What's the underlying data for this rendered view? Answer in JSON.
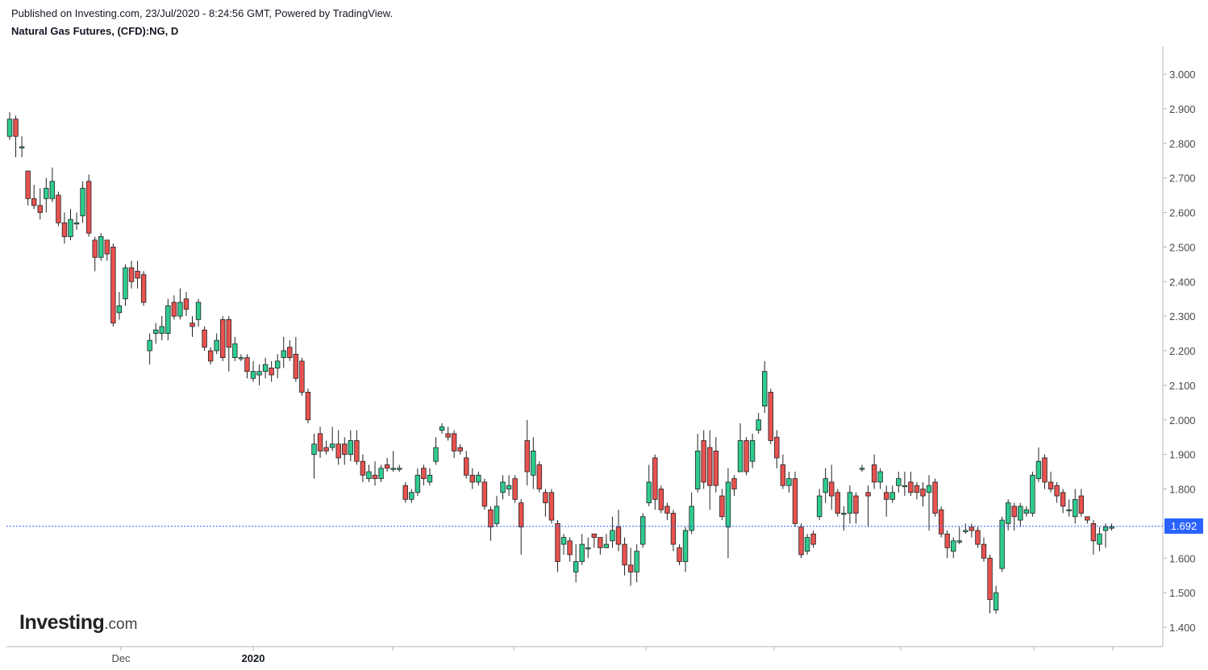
{
  "header": {
    "published": "Published on Investing.com, 23/Jul/2020 - 8:24:56 GMT, Powered by TradingView.",
    "instrument": "Natural Gas Futures, (CFD):NG, D"
  },
  "logo": {
    "main": "Investing",
    "suffix": ".com"
  },
  "colors": {
    "up": "#26a69a",
    "up_fill": "#2ecc8f",
    "down": "#ef5350",
    "down_fill": "#e8524f",
    "wick": "#222222",
    "last_price_line": "#2962ff"
  },
  "chart_data": {
    "type": "candlestick",
    "title": "Natural Gas Futures, (CFD):NG, D",
    "x_axis": {
      "ticks": [
        "Dec",
        "2020",
        "",
        "",
        "",
        "",
        "",
        "",
        ""
      ]
    },
    "y_axis": {
      "side": "right",
      "range": [
        1.36,
        3.07
      ],
      "ticks": [
        "3.000",
        "2.900",
        "2.800",
        "2.700",
        "2.600",
        "2.500",
        "2.400",
        "2.300",
        "2.200",
        "2.100",
        "2.000",
        "1.900",
        "1.800",
        "1.700",
        "1.600",
        "1.500",
        "1.400"
      ]
    },
    "last_price": 1.692,
    "last_price_label": "1.692",
    "candles": [
      [
        2.82,
        2.87,
        2.89,
        2.81
      ],
      [
        2.87,
        2.82,
        2.88,
        2.76
      ],
      [
        2.79,
        2.79,
        2.82,
        2.76
      ],
      [
        2.72,
        2.64,
        2.72,
        2.62
      ],
      [
        2.64,
        2.62,
        2.68,
        2.61
      ],
      [
        2.62,
        2.6,
        2.67,
        2.58
      ],
      [
        2.64,
        2.67,
        2.7,
        2.6
      ],
      [
        2.64,
        2.69,
        2.73,
        2.63
      ],
      [
        2.65,
        2.57,
        2.66,
        2.56
      ],
      [
        2.57,
        2.53,
        2.6,
        2.51
      ],
      [
        2.53,
        2.58,
        2.61,
        2.52
      ],
      [
        2.57,
        2.57,
        2.6,
        2.55
      ],
      [
        2.59,
        2.67,
        2.69,
        2.57
      ],
      [
        2.69,
        2.54,
        2.71,
        2.53
      ],
      [
        2.52,
        2.47,
        2.53,
        2.43
      ],
      [
        2.47,
        2.53,
        2.54,
        2.46
      ],
      [
        2.52,
        2.48,
        2.52,
        2.46
      ],
      [
        2.5,
        2.28,
        2.51,
        2.27
      ],
      [
        2.31,
        2.33,
        2.37,
        2.29
      ],
      [
        2.35,
        2.44,
        2.45,
        2.33
      ],
      [
        2.44,
        2.4,
        2.46,
        2.38
      ],
      [
        2.43,
        2.41,
        2.46,
        2.38
      ],
      [
        2.42,
        2.34,
        2.43,
        2.33
      ],
      [
        2.2,
        2.23,
        2.25,
        2.16
      ],
      [
        2.25,
        2.26,
        2.28,
        2.22
      ],
      [
        2.25,
        2.27,
        2.3,
        2.23
      ],
      [
        2.25,
        2.33,
        2.35,
        2.23
      ],
      [
        2.34,
        2.3,
        2.36,
        2.29
      ],
      [
        2.3,
        2.34,
        2.38,
        2.29
      ],
      [
        2.35,
        2.32,
        2.37,
        2.3
      ],
      [
        2.28,
        2.27,
        2.3,
        2.24
      ],
      [
        2.29,
        2.34,
        2.35,
        2.27
      ],
      [
        2.26,
        2.21,
        2.27,
        2.2
      ],
      [
        2.2,
        2.17,
        2.21,
        2.16
      ],
      [
        2.2,
        2.23,
        2.25,
        2.19
      ],
      [
        2.29,
        2.18,
        2.3,
        2.17
      ],
      [
        2.29,
        2.21,
        2.3,
        2.14
      ],
      [
        2.18,
        2.22,
        2.24,
        2.17
      ],
      [
        2.18,
        2.18,
        2.19,
        2.17
      ],
      [
        2.18,
        2.14,
        2.19,
        2.12
      ],
      [
        2.12,
        2.14,
        2.17,
        2.11
      ],
      [
        2.13,
        2.14,
        2.16,
        2.1
      ],
      [
        2.14,
        2.16,
        2.18,
        2.12
      ],
      [
        2.15,
        2.13,
        2.17,
        2.11
      ],
      [
        2.15,
        2.17,
        2.19,
        2.12
      ],
      [
        2.18,
        2.2,
        2.24,
        2.15
      ],
      [
        2.21,
        2.18,
        2.23,
        2.17
      ],
      [
        2.19,
        2.12,
        2.24,
        2.11
      ],
      [
        2.17,
        2.08,
        2.18,
        2.07
      ],
      [
        2.08,
        2.0,
        2.09,
        1.99
      ],
      [
        1.9,
        1.93,
        1.96,
        1.83
      ],
      [
        1.96,
        1.91,
        1.98,
        1.89
      ],
      [
        1.92,
        1.91,
        1.94,
        1.9
      ],
      [
        1.92,
        1.93,
        1.98,
        1.91
      ],
      [
        1.93,
        1.89,
        1.97,
        1.87
      ],
      [
        1.93,
        1.9,
        1.95,
        1.87
      ],
      [
        1.9,
        1.94,
        1.97,
        1.88
      ],
      [
        1.94,
        1.88,
        1.97,
        1.87
      ],
      [
        1.88,
        1.84,
        1.9,
        1.82
      ],
      [
        1.83,
        1.85,
        1.87,
        1.82
      ],
      [
        1.84,
        1.83,
        1.88,
        1.81
      ],
      [
        1.83,
        1.86,
        1.87,
        1.82
      ],
      [
        1.87,
        1.86,
        1.89,
        1.85
      ],
      [
        1.86,
        1.86,
        1.91,
        1.85
      ],
      [
        1.86,
        1.86,
        1.87,
        1.85
      ],
      [
        1.81,
        1.77,
        1.82,
        1.76
      ],
      [
        1.77,
        1.79,
        1.8,
        1.76
      ],
      [
        1.79,
        1.84,
        1.86,
        1.78
      ],
      [
        1.86,
        1.83,
        1.87,
        1.81
      ],
      [
        1.82,
        1.84,
        1.86,
        1.81
      ],
      [
        1.88,
        1.92,
        1.95,
        1.87
      ],
      [
        1.97,
        1.98,
        1.99,
        1.96
      ],
      [
        1.96,
        1.95,
        1.98,
        1.94
      ],
      [
        1.96,
        1.91,
        1.97,
        1.89
      ],
      [
        1.92,
        1.91,
        1.93,
        1.9
      ],
      [
        1.89,
        1.84,
        1.91,
        1.83
      ],
      [
        1.84,
        1.82,
        1.86,
        1.8
      ],
      [
        1.82,
        1.84,
        1.85,
        1.81
      ],
      [
        1.82,
        1.75,
        1.83,
        1.74
      ],
      [
        1.74,
        1.69,
        1.75,
        1.65
      ],
      [
        1.7,
        1.75,
        1.78,
        1.69
      ],
      [
        1.79,
        1.82,
        1.84,
        1.77
      ],
      [
        1.8,
        1.81,
        1.84,
        1.78
      ],
      [
        1.83,
        1.77,
        1.84,
        1.76
      ],
      [
        1.76,
        1.69,
        1.77,
        1.61
      ],
      [
        1.94,
        1.85,
        2.0,
        1.81
      ],
      [
        1.84,
        1.91,
        1.95,
        1.8
      ],
      [
        1.87,
        1.8,
        1.88,
        1.79
      ],
      [
        1.79,
        1.76,
        1.8,
        1.72
      ],
      [
        1.79,
        1.71,
        1.8,
        1.7
      ],
      [
        1.7,
        1.59,
        1.71,
        1.56
      ],
      [
        1.64,
        1.66,
        1.67,
        1.61
      ],
      [
        1.65,
        1.61,
        1.66,
        1.59
      ],
      [
        1.56,
        1.59,
        1.64,
        1.53
      ],
      [
        1.59,
        1.64,
        1.67,
        1.58
      ],
      [
        1.63,
        1.63,
        1.66,
        1.6
      ],
      [
        1.67,
        1.66,
        1.67,
        1.63
      ],
      [
        1.66,
        1.63,
        1.66,
        1.61
      ],
      [
        1.63,
        1.64,
        1.67,
        1.63
      ],
      [
        1.65,
        1.68,
        1.72,
        1.63
      ],
      [
        1.69,
        1.64,
        1.74,
        1.62
      ],
      [
        1.64,
        1.58,
        1.66,
        1.55
      ],
      [
        1.58,
        1.56,
        1.63,
        1.52
      ],
      [
        1.56,
        1.62,
        1.64,
        1.53
      ],
      [
        1.64,
        1.72,
        1.73,
        1.63
      ],
      [
        1.76,
        1.82,
        1.87,
        1.75
      ],
      [
        1.89,
        1.77,
        1.9,
        1.74
      ],
      [
        1.8,
        1.74,
        1.81,
        1.73
      ],
      [
        1.75,
        1.73,
        1.76,
        1.71
      ],
      [
        1.73,
        1.64,
        1.74,
        1.62
      ],
      [
        1.63,
        1.59,
        1.64,
        1.58
      ],
      [
        1.59,
        1.68,
        1.69,
        1.56
      ],
      [
        1.68,
        1.75,
        1.79,
        1.67
      ],
      [
        1.8,
        1.91,
        1.96,
        1.79
      ],
      [
        1.94,
        1.82,
        1.97,
        1.8
      ],
      [
        1.92,
        1.81,
        1.97,
        1.74
      ],
      [
        1.91,
        1.81,
        1.95,
        1.79
      ],
      [
        1.78,
        1.72,
        1.8,
        1.71
      ],
      [
        1.69,
        1.82,
        1.86,
        1.6
      ],
      [
        1.83,
        1.8,
        1.84,
        1.78
      ],
      [
        1.85,
        1.94,
        1.99,
        1.85
      ],
      [
        1.94,
        1.85,
        1.95,
        1.84
      ],
      [
        1.88,
        1.94,
        1.96,
        1.86
      ],
      [
        1.97,
        2.0,
        2.02,
        1.96
      ],
      [
        2.04,
        2.14,
        2.17,
        2.02
      ],
      [
        2.08,
        1.94,
        2.09,
        1.93
      ],
      [
        1.95,
        1.89,
        1.97,
        1.86
      ],
      [
        1.87,
        1.81,
        1.9,
        1.8
      ],
      [
        1.81,
        1.83,
        1.85,
        1.79
      ],
      [
        1.83,
        1.7,
        1.85,
        1.69
      ],
      [
        1.69,
        1.61,
        1.7,
        1.6
      ],
      [
        1.62,
        1.66,
        1.67,
        1.61
      ],
      [
        1.67,
        1.64,
        1.68,
        1.63
      ],
      [
        1.72,
        1.78,
        1.8,
        1.71
      ],
      [
        1.79,
        1.83,
        1.86,
        1.76
      ],
      [
        1.82,
        1.78,
        1.87,
        1.74
      ],
      [
        1.79,
        1.73,
        1.8,
        1.72
      ],
      [
        1.73,
        1.73,
        1.75,
        1.68
      ],
      [
        1.73,
        1.79,
        1.81,
        1.7
      ],
      [
        1.78,
        1.73,
        1.79,
        1.7
      ],
      [
        1.86,
        1.86,
        1.87,
        1.85
      ],
      [
        1.79,
        1.78,
        1.81,
        1.69
      ],
      [
        1.87,
        1.82,
        1.9,
        1.8
      ],
      [
        1.82,
        1.85,
        1.86,
        1.8
      ],
      [
        1.79,
        1.77,
        1.81,
        1.72
      ],
      [
        1.77,
        1.79,
        1.81,
        1.76
      ],
      [
        1.81,
        1.83,
        1.85,
        1.79
      ],
      [
        1.81,
        1.81,
        1.85,
        1.78
      ],
      [
        1.82,
        1.79,
        1.85,
        1.78
      ],
      [
        1.81,
        1.79,
        1.82,
        1.77
      ],
      [
        1.8,
        1.78,
        1.82,
        1.75
      ],
      [
        1.79,
        1.81,
        1.84,
        1.68
      ],
      [
        1.82,
        1.73,
        1.83,
        1.72
      ],
      [
        1.74,
        1.67,
        1.75,
        1.66
      ],
      [
        1.67,
        1.63,
        1.68,
        1.6
      ],
      [
        1.62,
        1.65,
        1.66,
        1.6
      ],
      [
        1.65,
        1.65,
        1.69,
        1.64
      ],
      [
        1.68,
        1.68,
        1.7,
        1.67
      ],
      [
        1.69,
        1.68,
        1.7,
        1.66
      ],
      [
        1.68,
        1.64,
        1.69,
        1.63
      ],
      [
        1.64,
        1.6,
        1.66,
        1.59
      ],
      [
        1.6,
        1.48,
        1.61,
        1.44
      ],
      [
        1.45,
        1.5,
        1.52,
        1.44
      ],
      [
        1.57,
        1.71,
        1.72,
        1.56
      ],
      [
        1.7,
        1.76,
        1.77,
        1.68
      ],
      [
        1.75,
        1.72,
        1.76,
        1.68
      ],
      [
        1.71,
        1.75,
        1.76,
        1.69
      ],
      [
        1.73,
        1.74,
        1.75,
        1.72
      ],
      [
        1.73,
        1.84,
        1.85,
        1.72
      ],
      [
        1.83,
        1.88,
        1.92,
        1.82
      ],
      [
        1.89,
        1.82,
        1.9,
        1.8
      ],
      [
        1.82,
        1.8,
        1.85,
        1.79
      ],
      [
        1.81,
        1.78,
        1.82,
        1.76
      ],
      [
        1.79,
        1.75,
        1.8,
        1.73
      ],
      [
        1.74,
        1.74,
        1.77,
        1.72
      ],
      [
        1.72,
        1.77,
        1.8,
        1.7
      ],
      [
        1.78,
        1.73,
        1.8,
        1.72
      ],
      [
        1.72,
        1.71,
        1.72,
        1.7
      ],
      [
        1.7,
        1.65,
        1.71,
        1.61
      ],
      [
        1.64,
        1.67,
        1.69,
        1.62
      ],
      [
        1.68,
        1.69,
        1.7,
        1.63
      ],
      [
        1.69,
        1.69,
        1.7,
        1.68
      ]
    ]
  }
}
